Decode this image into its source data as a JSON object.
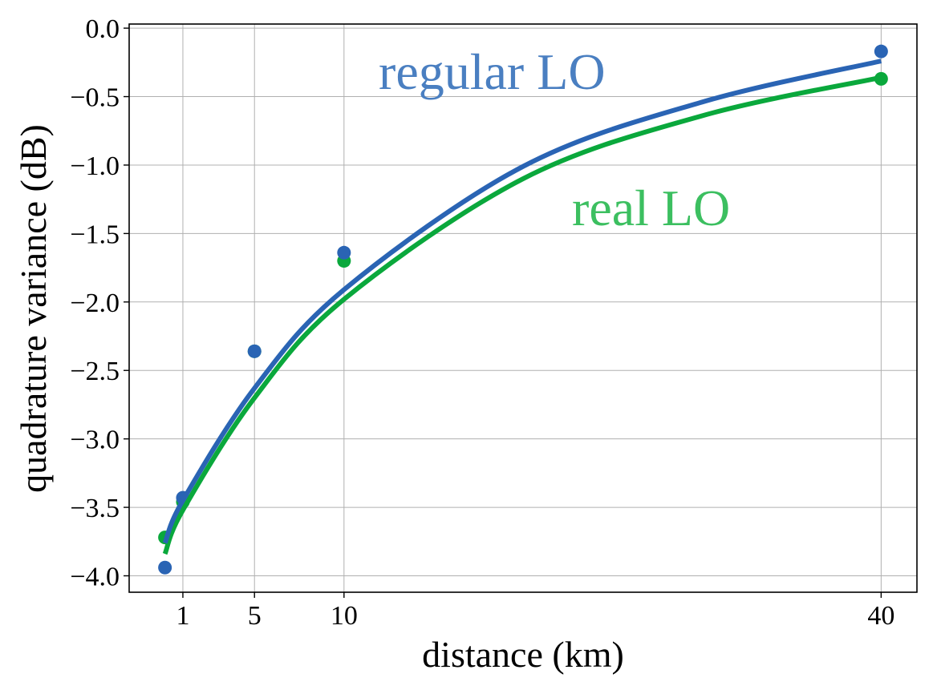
{
  "chart_data": {
    "type": "line",
    "xlabel": "distance (km)",
    "ylabel": "quadrature variance (dB)",
    "xlim": [
      -2,
      42
    ],
    "ylim": [
      -4.12,
      0.03
    ],
    "xticks": [
      1,
      5,
      10,
      40
    ],
    "yticks": [
      0.0,
      -0.5,
      -1.0,
      -1.5,
      -2.0,
      -2.5,
      -3.0,
      -3.5,
      -4.0
    ],
    "ytick_labels": [
      "0.0",
      "−0.5",
      "−1.0",
      "−1.5",
      "−2.0",
      "−2.5",
      "−3.0",
      "−3.5",
      "−4.0"
    ],
    "grid": true,
    "series": [
      {
        "name": "regular LO",
        "color": "#2a64b4",
        "label_color": "#4a7fc1",
        "points": {
          "x": [
            0.0,
            1.0,
            5.0,
            10.0,
            40.0
          ],
          "y": [
            -3.94,
            -3.43,
            -2.36,
            -1.64,
            -0.17
          ]
        },
        "fit": {
          "x": [
            0.0,
            1.0,
            5.0,
            10.0,
            20.0,
            30.0,
            40.0
          ],
          "y": [
            -3.76,
            -3.45,
            -2.63,
            -1.91,
            -1.01,
            -0.54,
            -0.24
          ]
        }
      },
      {
        "name": "real LO",
        "color": "#0aa83c",
        "label_color": "#3cbf60",
        "points": {
          "x": [
            0.0,
            1.0,
            5.0,
            10.0,
            40.0
          ],
          "y": [
            -3.72,
            -3.46,
            -2.36,
            -1.7,
            -0.37
          ]
        },
        "fit": {
          "x": [
            0.0,
            1.0,
            5.0,
            10.0,
            20.0,
            30.0,
            40.0
          ],
          "y": [
            -3.84,
            -3.52,
            -2.7,
            -1.98,
            -1.1,
            -0.64,
            -0.36
          ]
        }
      }
    ]
  }
}
